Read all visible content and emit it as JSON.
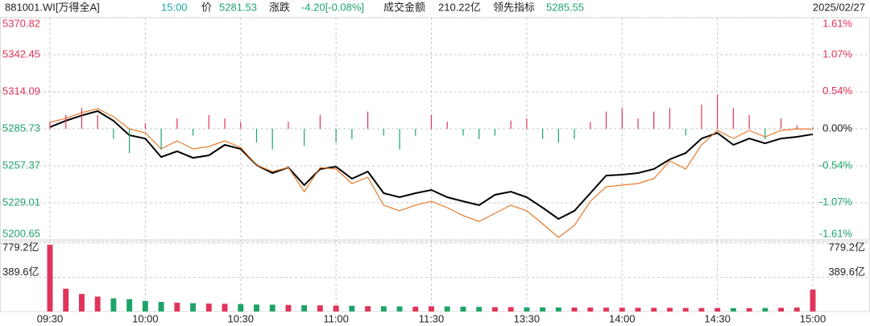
{
  "header": {
    "code": "881001.WI[万得全A]",
    "time": "15:00",
    "price_label": "价",
    "price": "5281.53",
    "change_label": "涨跌",
    "change": "-4.20[-0.08%]",
    "amount_label": "成交金额",
    "amount": "210.22亿",
    "lead_label": "领先指标",
    "lead": "5285.55",
    "date": "2025/02/27"
  },
  "chart_data": [
    {
      "type": "line",
      "categories": [
        "09:30",
        null,
        null,
        null,
        null,
        null,
        "10:00",
        null,
        null,
        null,
        null,
        null,
        "10:30",
        null,
        null,
        null,
        null,
        null,
        "11:00",
        null,
        null,
        null,
        null,
        null,
        "11:30",
        null,
        null,
        null,
        null,
        null,
        "13:30",
        null,
        null,
        null,
        null,
        null,
        "14:00",
        null,
        null,
        null,
        null,
        null,
        "14:30",
        null,
        null,
        null,
        null,
        null,
        "15:00"
      ],
      "series": [
        {
          "color": "#000000",
          "values": [
            5287,
            5291.9,
            5296,
            5299.3,
            5291.9,
            5280.8,
            5278.3,
            5264.1,
            5268.5,
            5263.5,
            5265.4,
            5273.4,
            5270.3,
            5258,
            5251.8,
            5256.1,
            5242.6,
            5254.9,
            5256.7,
            5247.5,
            5253,
            5236.4,
            5233.3,
            5236.4,
            5238.9,
            5233.3,
            5230.2,
            5227.2,
            5235.2,
            5237.6,
            5233.3,
            5225.3,
            5216.7,
            5222.9,
            5236.4,
            5249.9,
            5250.6,
            5251.8,
            5254.9,
            5262.3,
            5267.2,
            5278.3,
            5282.6,
            5273.4,
            5278.3,
            5274.6,
            5278.3,
            5279.6,
            5281.53
          ]
        },
        {
          "color": "#e8792b",
          "values": [
            5290.7,
            5293.7,
            5298.1,
            5301.1,
            5295,
            5285.7,
            5282.6,
            5270.3,
            5276.5,
            5270.3,
            5272.2,
            5276.5,
            5271.5,
            5258,
            5253,
            5256.1,
            5237.6,
            5256.1,
            5254.9,
            5243.8,
            5248.7,
            5227.2,
            5222.9,
            5227.2,
            5230.2,
            5225.3,
            5219.2,
            5214.8,
            5221,
            5227.2,
            5222.9,
            5213,
            5202.5,
            5211.8,
            5230.2,
            5241.3,
            5242.6,
            5243.8,
            5247.5,
            5261.1,
            5254.9,
            5273.4,
            5284.5,
            5278.3,
            5284.5,
            5279.6,
            5284.5,
            5285.7,
            5285.55
          ]
        },
        {
          "type": "bar",
          "axis": "y2",
          "up_color": "#e0345a",
          "down_color": "#1fa36a",
          "values": [
            0.1,
            0.2,
            0.3,
            0.2,
            -0.15,
            -0.35,
            0.08,
            -0.3,
            0.15,
            -0.1,
            0.2,
            0.15,
            0.1,
            -0.2,
            -0.3,
            0.1,
            -0.25,
            0.2,
            -0.2,
            -0.15,
            0.25,
            -0.1,
            -0.3,
            -0.1,
            0.2,
            0.1,
            -0.1,
            -0.15,
            -0.1,
            0.12,
            0.15,
            -0.15,
            -0.2,
            -0.15,
            0.1,
            0.25,
            0.3,
            0.15,
            0.25,
            0.3,
            -0.1,
            0.35,
            0.5,
            0.3,
            0.2,
            -0.15,
            0.15,
            0.05,
            0.02
          ]
        }
      ],
      "ylim": [
        5200.65,
        5370.82
      ],
      "yticks": [
        5370.82,
        5342.45,
        5314.09,
        5285.73,
        5257.37,
        5229.01,
        5200.65
      ],
      "y2lim": [
        -1.61,
        1.61
      ],
      "y2ticks": [
        {
          "value": 1.61,
          "label": "1.61%"
        },
        {
          "value": 1.07,
          "label": "1.07%"
        },
        {
          "value": 0.54,
          "label": "0.54%"
        },
        {
          "value": 0,
          "label": "0.00%"
        },
        {
          "value": -0.54,
          "label": "-0.54%"
        },
        {
          "value": -1.07,
          "label": "-1.07%"
        },
        {
          "value": -1.61,
          "label": "-1.61%"
        }
      ],
      "up_color": "#e0345a",
      "down_color": "#1fa36a",
      "grid": true
    },
    {
      "type": "bar",
      "values": [
        760,
        260,
        200,
        170,
        150,
        140,
        120,
        110,
        100,
        95,
        90,
        88,
        85,
        80,
        78,
        75,
        72,
        70,
        68,
        65,
        62,
        60,
        58,
        55,
        60,
        58,
        55,
        53,
        50,
        50,
        48,
        47,
        46,
        45,
        45,
        44,
        43,
        42,
        42,
        41,
        40,
        40,
        40,
        38,
        38,
        40,
        42,
        45,
        250
      ],
      "ylim": [
        0,
        779.2
      ],
      "yticks": [
        {
          "value": 779.2,
          "label": "779.2亿"
        },
        {
          "value": 389.6,
          "label": "389.6亿"
        }
      ],
      "up_color": "#e0345a",
      "down_color": "#1fa36a",
      "grid": true
    }
  ]
}
